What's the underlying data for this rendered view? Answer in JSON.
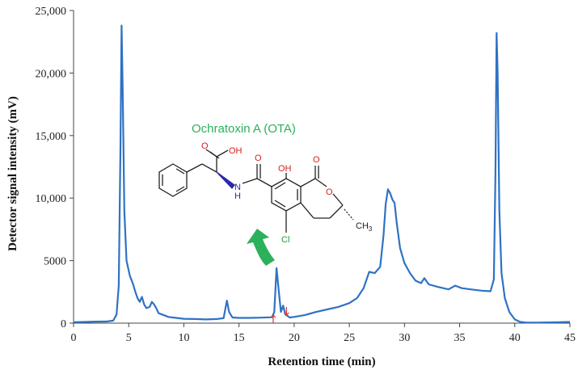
{
  "chart_data": {
    "type": "line",
    "title": "",
    "xlabel": "Retention time (min)",
    "ylabel": "Detector signal intensity (mV)",
    "xlim": [
      0,
      45
    ],
    "ylim": [
      0,
      25000
    ],
    "x_ticks": [
      0,
      5,
      10,
      15,
      20,
      25,
      30,
      35,
      40,
      45
    ],
    "x_tick_labels": [
      "0",
      "5",
      "10",
      "15",
      "20",
      "25",
      "30",
      "35",
      "40",
      "45"
    ],
    "y_ticks": [
      0,
      5000,
      10000,
      15000,
      20000,
      25000
    ],
    "y_tick_labels": [
      "0",
      "5000",
      "10,000",
      "15,000",
      "20,000",
      "25,000"
    ],
    "line_color": "#2f72c4",
    "series": [
      {
        "name": "chromatogram",
        "points": [
          [
            0,
            80
          ],
          [
            1,
            100
          ],
          [
            2,
            120
          ],
          [
            3,
            130
          ],
          [
            3.6,
            200
          ],
          [
            3.9,
            700
          ],
          [
            4.1,
            3000
          ],
          [
            4.25,
            14000
          ],
          [
            4.35,
            23800
          ],
          [
            4.45,
            19000
          ],
          [
            4.6,
            9000
          ],
          [
            4.8,
            5000
          ],
          [
            5.1,
            3800
          ],
          [
            5.4,
            3100
          ],
          [
            5.6,
            2500
          ],
          [
            5.8,
            2000
          ],
          [
            6.0,
            1700
          ],
          [
            6.2,
            2100
          ],
          [
            6.4,
            1500
          ],
          [
            6.6,
            1200
          ],
          [
            6.9,
            1300
          ],
          [
            7.1,
            1700
          ],
          [
            7.3,
            1500
          ],
          [
            7.5,
            1200
          ],
          [
            7.7,
            800
          ],
          [
            8.0,
            700
          ],
          [
            8.3,
            600
          ],
          [
            8.6,
            500
          ],
          [
            9.0,
            450
          ],
          [
            10,
            350
          ],
          [
            11,
            330
          ],
          [
            12,
            300
          ],
          [
            13,
            330
          ],
          [
            13.6,
            400
          ],
          [
            13.9,
            1800
          ],
          [
            14.1,
            900
          ],
          [
            14.4,
            450
          ],
          [
            15,
            420
          ],
          [
            16,
            420
          ],
          [
            17,
            440
          ],
          [
            18,
            470
          ],
          [
            18.2,
            900
          ],
          [
            18.4,
            4400
          ],
          [
            18.6,
            2600
          ],
          [
            18.8,
            900
          ],
          [
            19.0,
            1400
          ],
          [
            19.2,
            700
          ],
          [
            19.6,
            450
          ],
          [
            20,
            500
          ],
          [
            21,
            650
          ],
          [
            22,
            900
          ],
          [
            23,
            1100
          ],
          [
            24,
            1300
          ],
          [
            25,
            1600
          ],
          [
            25.7,
            2000
          ],
          [
            26.3,
            2800
          ],
          [
            26.8,
            4100
          ],
          [
            27.3,
            4000
          ],
          [
            27.8,
            4500
          ],
          [
            28.1,
            7000
          ],
          [
            28.3,
            9500
          ],
          [
            28.5,
            10700
          ],
          [
            28.7,
            10400
          ],
          [
            28.9,
            9900
          ],
          [
            29.1,
            9600
          ],
          [
            29.3,
            8000
          ],
          [
            29.6,
            6000
          ],
          [
            30,
            4800
          ],
          [
            30.5,
            4000
          ],
          [
            31,
            3400
          ],
          [
            31.5,
            3200
          ],
          [
            31.8,
            3600
          ],
          [
            32.2,
            3100
          ],
          [
            33,
            2900
          ],
          [
            34,
            2700
          ],
          [
            34.6,
            3000
          ],
          [
            35.2,
            2800
          ],
          [
            36,
            2700
          ],
          [
            37,
            2600
          ],
          [
            37.8,
            2550
          ],
          [
            38.1,
            3500
          ],
          [
            38.25,
            12000
          ],
          [
            38.35,
            23200
          ],
          [
            38.45,
            20000
          ],
          [
            38.6,
            9000
          ],
          [
            38.8,
            4000
          ],
          [
            39.1,
            2000
          ],
          [
            39.5,
            900
          ],
          [
            40,
            300
          ],
          [
            40.5,
            100
          ],
          [
            41,
            50
          ],
          [
            42,
            40
          ],
          [
            43,
            60
          ],
          [
            44,
            80
          ],
          [
            45,
            100
          ]
        ]
      }
    ],
    "annotations": {
      "compound_label": "Ochratoxin A (OTA)",
      "peak_marker_start": 18.1,
      "peak_marker_end": 19.3,
      "arrow_color": "#2bb15a",
      "marker_color": "#e03030",
      "structure_labels": {
        "carboxyl_oh": "OH",
        "carboxyl_o": "O",
        "amide_o": "O",
        "amine": "N",
        "amine_h": "H",
        "hydroxyl": "OH",
        "lactone_o": "O",
        "ring_o": "O",
        "chlorine": "Cl",
        "methyl": "CH",
        "methyl_sub": "3"
      }
    }
  }
}
